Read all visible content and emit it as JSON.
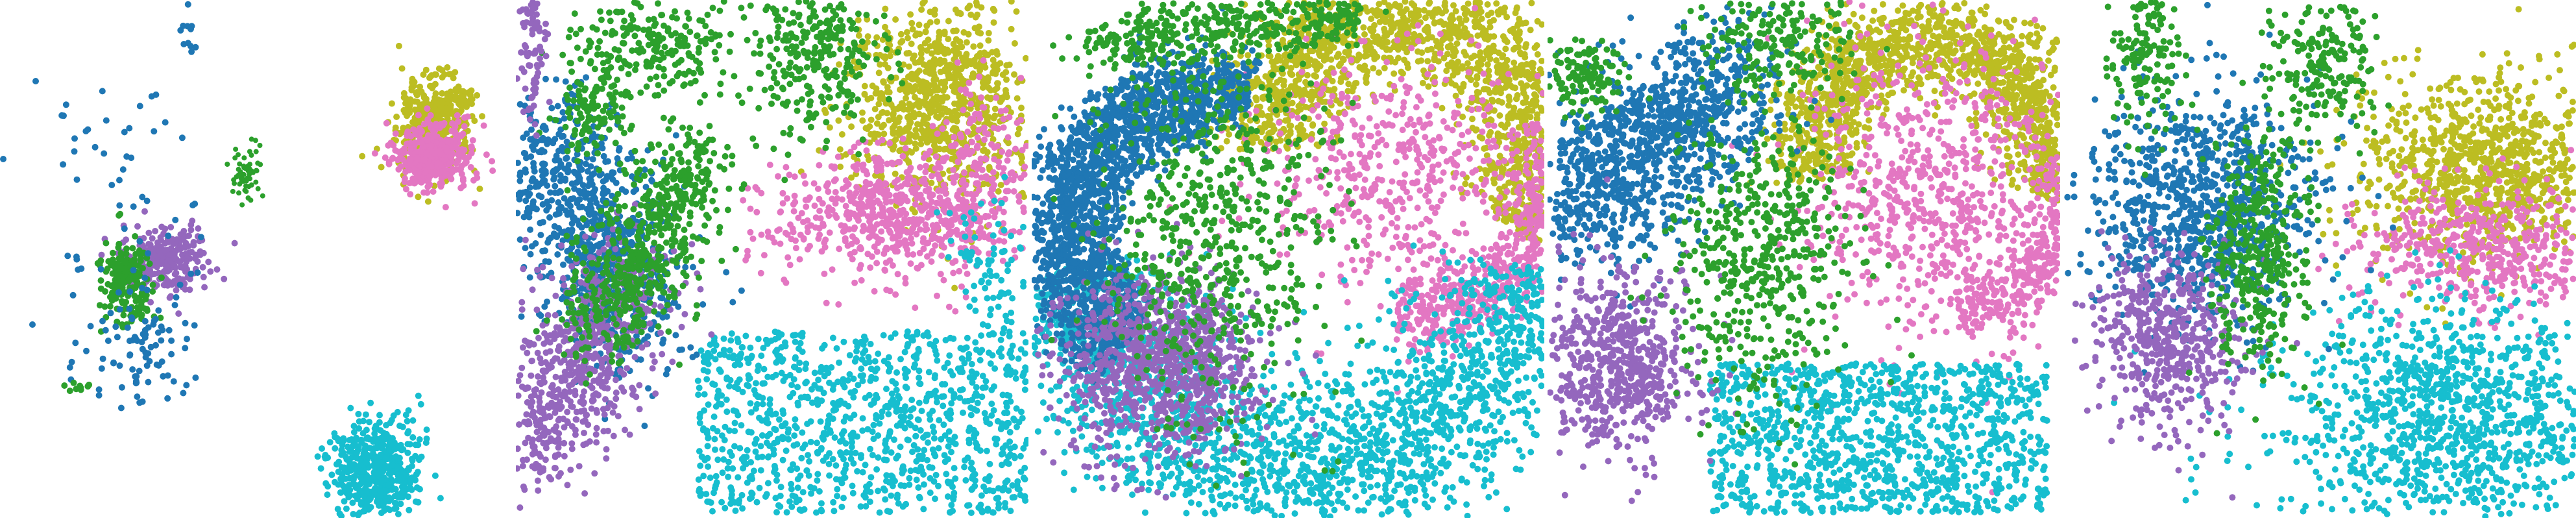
{
  "figure": {
    "panel_count": 5,
    "background": "#ffffff",
    "panels": [
      {
        "name": "embedding-panel"
      },
      {
        "name": "tissue-section-1"
      },
      {
        "name": "tissue-section-2"
      },
      {
        "name": "tissue-section-3"
      },
      {
        "name": "tissue-section-4"
      }
    ]
  },
  "palette": {
    "blue": "#1f77b4",
    "green": "#2ca02c",
    "purple": "#9467bd",
    "pink": "#e377c2",
    "olive": "#bcbd22",
    "cyan": "#17becf"
  }
}
